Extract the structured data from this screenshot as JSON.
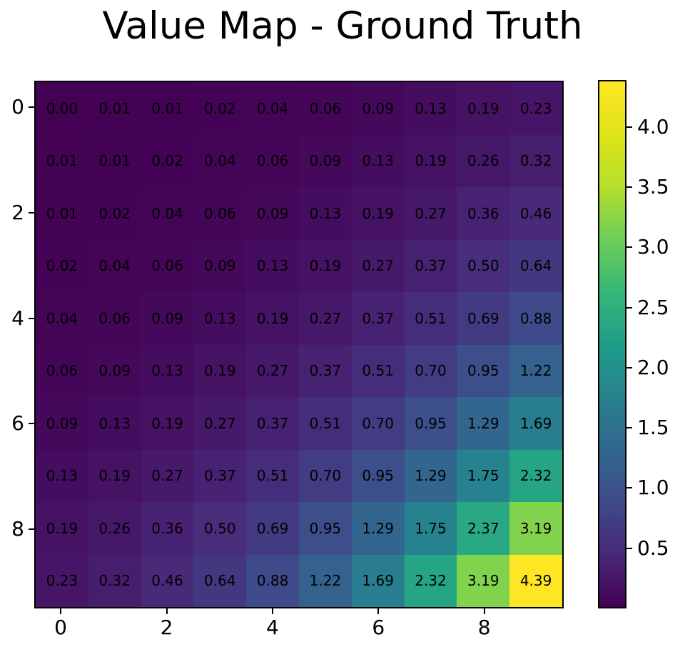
{
  "title": "Value Map - Ground Truth",
  "chart_data": {
    "type": "heatmap",
    "title": "Value Map - Ground Truth",
    "rows": 10,
    "cols": 10,
    "values": [
      [
        0.0,
        0.01,
        0.01,
        0.02,
        0.04,
        0.06,
        0.09,
        0.13,
        0.19,
        0.23
      ],
      [
        0.01,
        0.01,
        0.02,
        0.04,
        0.06,
        0.09,
        0.13,
        0.19,
        0.26,
        0.32
      ],
      [
        0.01,
        0.02,
        0.04,
        0.06,
        0.09,
        0.13,
        0.19,
        0.27,
        0.36,
        0.46
      ],
      [
        0.02,
        0.04,
        0.06,
        0.09,
        0.13,
        0.19,
        0.27,
        0.37,
        0.5,
        0.64
      ],
      [
        0.04,
        0.06,
        0.09,
        0.13,
        0.19,
        0.27,
        0.37,
        0.51,
        0.69,
        0.88
      ],
      [
        0.06,
        0.09,
        0.13,
        0.19,
        0.27,
        0.37,
        0.51,
        0.7,
        0.95,
        1.22
      ],
      [
        0.09,
        0.13,
        0.19,
        0.27,
        0.37,
        0.51,
        0.7,
        0.95,
        1.29,
        1.69
      ],
      [
        0.13,
        0.19,
        0.27,
        0.37,
        0.51,
        0.7,
        0.95,
        1.29,
        1.75,
        2.32
      ],
      [
        0.19,
        0.26,
        0.36,
        0.5,
        0.69,
        0.95,
        1.29,
        1.75,
        2.37,
        3.19
      ],
      [
        0.23,
        0.32,
        0.46,
        0.64,
        0.88,
        1.22,
        1.69,
        2.32,
        3.19,
        4.39
      ]
    ],
    "value_format": "%.2f",
    "annotation_color": "#000000",
    "x_tick_labels": [
      "0",
      "2",
      "4",
      "6",
      "8"
    ],
    "x_tick_positions": [
      0,
      2,
      4,
      6,
      8
    ],
    "y_tick_labels": [
      "0",
      "2",
      "4",
      "6",
      "8"
    ],
    "y_tick_positions": [
      0,
      2,
      4,
      6,
      8
    ],
    "colormap": "viridis",
    "vmin": 0,
    "vmax": 4.39,
    "grid": false,
    "colorbar": {
      "position": "right",
      "ticks": [
        0.5,
        1.0,
        1.5,
        2.0,
        2.5,
        3.0,
        3.5,
        4.0
      ],
      "tick_labels": [
        "0.5",
        "1.0",
        "1.5",
        "2.0",
        "2.5",
        "3.0",
        "3.5",
        "4.0"
      ]
    }
  },
  "colors": {
    "background": "#ffffff",
    "spine": "#000000",
    "tick_text": "#000000",
    "viridis_stops": [
      "#440154",
      "#482878",
      "#3e4a89",
      "#31688e",
      "#26828e",
      "#1f9e89",
      "#35b779",
      "#6ece58",
      "#b5de2b",
      "#dfe318",
      "#fde725"
    ]
  }
}
